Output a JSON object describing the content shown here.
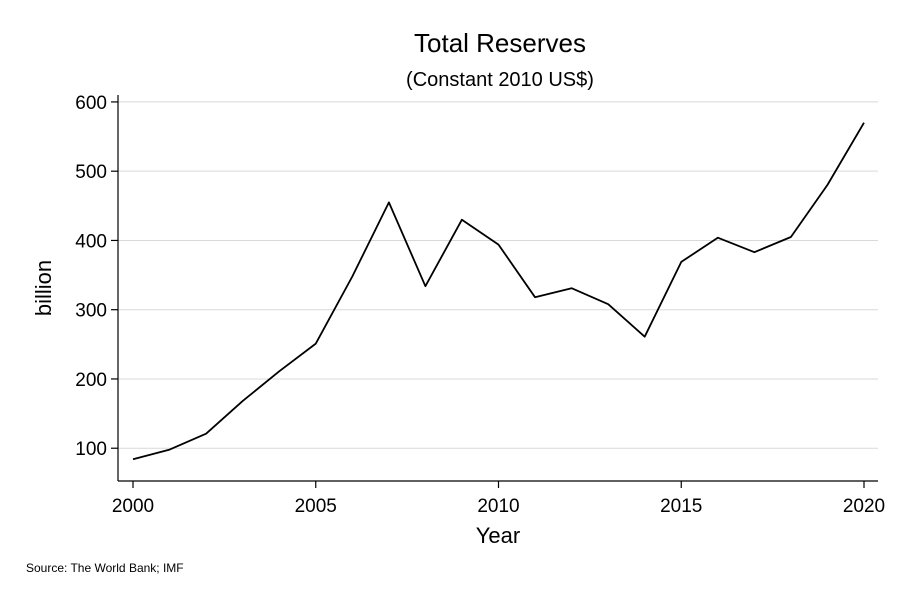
{
  "chart_data": {
    "type": "line",
    "title": "Total Reserves",
    "subtitle": "(Constant 2010 US$)",
    "xlabel": "Year",
    "ylabel": "billion",
    "xlim": [
      2000,
      2020
    ],
    "ylim": [
      70,
      610
    ],
    "xticks": [
      2000,
      2005,
      2010,
      2015,
      2020
    ],
    "yticks": [
      100,
      200,
      300,
      400,
      500,
      600
    ],
    "grid": "horizontal",
    "legend": "none",
    "line_color": "#000000",
    "grid_color": "#d9d9d9",
    "series": [
      {
        "x": [
          2000,
          2001,
          2002,
          2003,
          2004,
          2005,
          2006,
          2007,
          2008,
          2009,
          2010,
          2011,
          2012,
          2013,
          2014,
          2015,
          2016,
          2017,
          2018,
          2019,
          2020
        ],
        "values": [
          84,
          98,
          121,
          168,
          211,
          251,
          348,
          455,
          334,
          430,
          394,
          318,
          331,
          308,
          261,
          369,
          404,
          383,
          405,
          480,
          570
        ]
      }
    ]
  },
  "source_note": "Source: The World Bank; IMF"
}
